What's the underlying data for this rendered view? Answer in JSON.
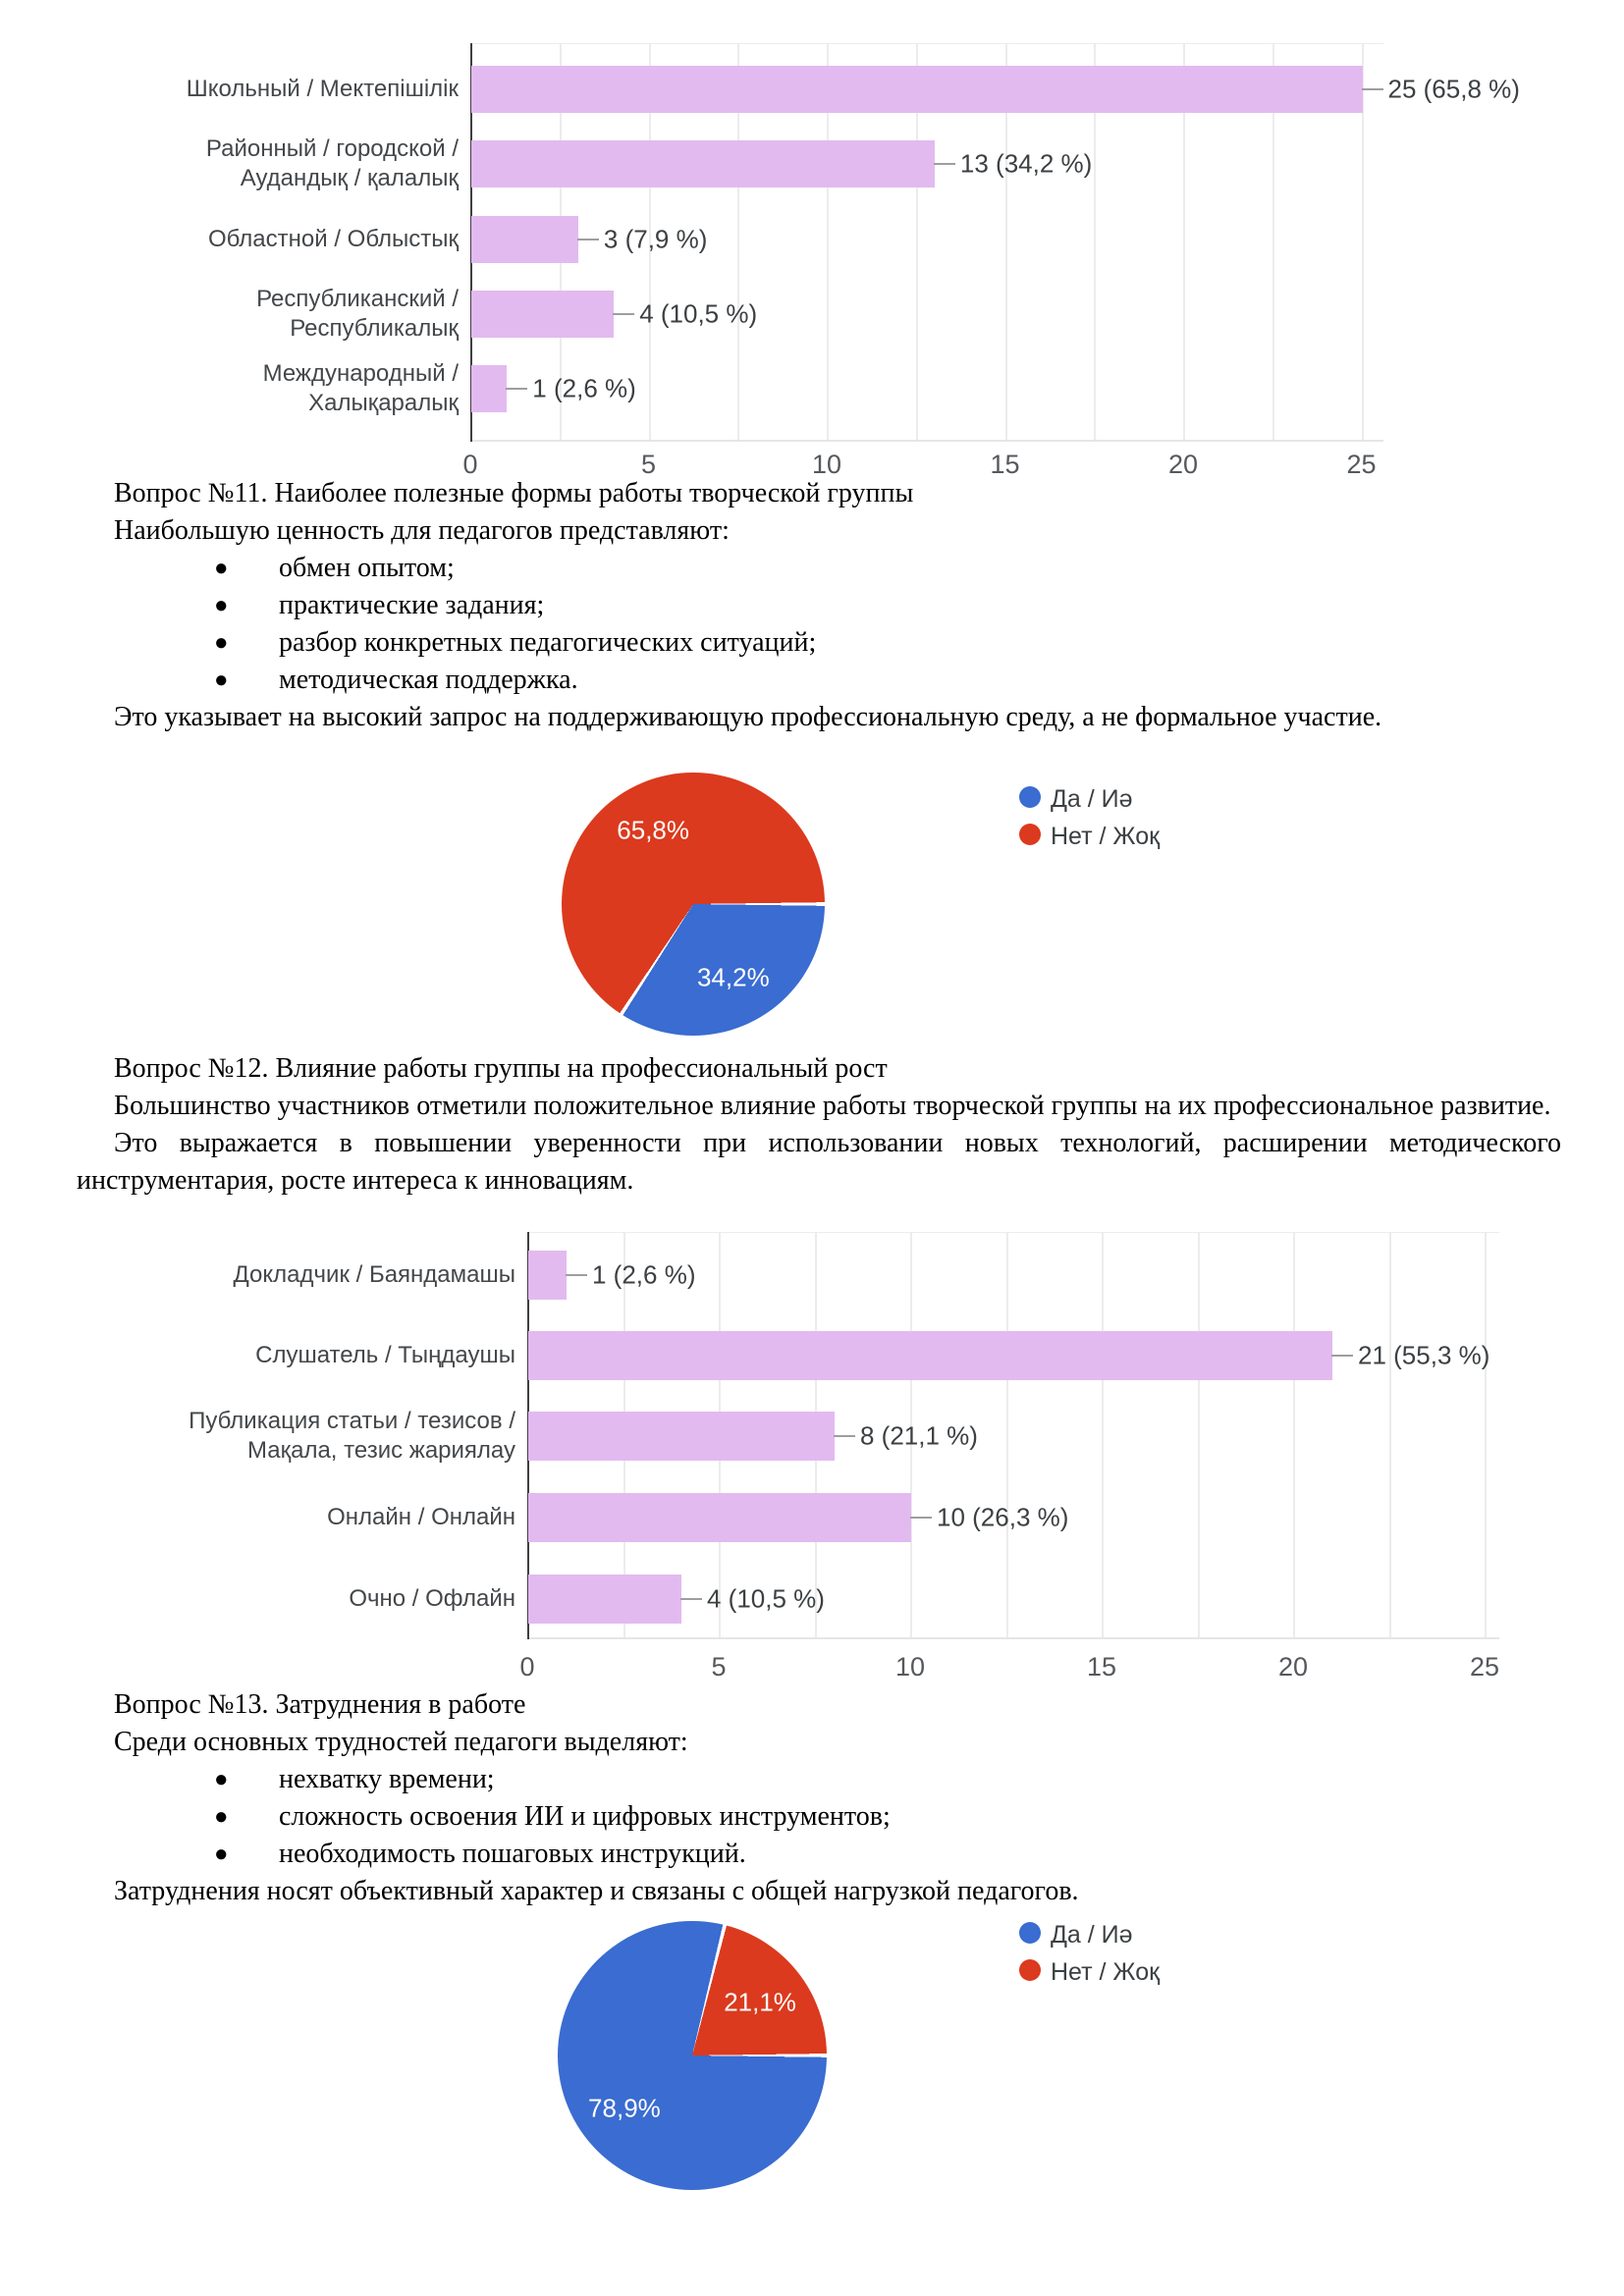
{
  "colors": {
    "bar_fill": "#e2baf0",
    "pie_blue": "#3a6cd1",
    "pie_red": "#db3a1e",
    "grid": "#ececec",
    "axis": "#3f3f3f"
  },
  "legend": {
    "yes": "Да / Иә",
    "no": "Нет / Жоқ"
  },
  "chart_data": [
    {
      "id": "bar1",
      "type": "bar",
      "orientation": "horizontal",
      "categories": [
        "Школьный / Мектепішілік",
        "Районный / городской /\nАудандық / қалалық",
        "Областной / Облыстық",
        "Республиканский /\nРеспубликалық",
        "Международный /\nХалықаралық"
      ],
      "values": [
        25,
        13,
        3,
        4,
        1
      ],
      "value_labels": [
        "25 (65,8 %)",
        "13 (34,2 %)",
        "3 (7,9 %)",
        "4 (10,5 %)",
        "1 (2,6 %)"
      ],
      "xlim": [
        0,
        25
      ],
      "ticks": [
        "0",
        "5",
        "10",
        "15",
        "20",
        "25"
      ],
      "grid": "on",
      "bar_color": "#e2baf0"
    },
    {
      "id": "pie1",
      "type": "pie",
      "start_angle_deg": 90,
      "slices": [
        {
          "label": "Да / Иә",
          "pct": 34.2,
          "display": "34,2%",
          "color": "#3a6cd1"
        },
        {
          "label": "Нет / Жоқ",
          "pct": 65.8,
          "display": "65,8%",
          "color": "#db3a1e"
        }
      ],
      "legend": [
        {
          "label": "Да / Иә",
          "color": "#3a6cd1"
        },
        {
          "label": "Нет / Жоқ",
          "color": "#db3a1e"
        }
      ],
      "legend_position": "top-right"
    },
    {
      "id": "bar2",
      "type": "bar",
      "orientation": "horizontal",
      "categories": [
        "Докладчик / Баяндамашы",
        "Слушатель / Тыңдаушы",
        "Публикация статьи / тезисов /\nМақала, тезис жариялау",
        "Онлайн / Онлайн",
        "Очно / Офлайн"
      ],
      "values": [
        1,
        21,
        8,
        10,
        4
      ],
      "value_labels": [
        "1 (2,6 %)",
        "21 (55,3 %)",
        "8 (21,1 %)",
        "10 (26,3 %)",
        "4 (10,5 %)"
      ],
      "xlim": [
        0,
        25
      ],
      "ticks": [
        "0",
        "5",
        "10",
        "15",
        "20",
        "25"
      ],
      "grid": "on",
      "bar_color": "#e2baf0"
    },
    {
      "id": "pie2",
      "type": "pie",
      "start_angle_deg": 14,
      "slices": [
        {
          "label": "Нет / Жоқ",
          "pct": 21.1,
          "display": "21,1%",
          "color": "#db3a1e"
        },
        {
          "label": "Да / Иә",
          "pct": 78.9,
          "display": "78,9%",
          "color": "#3a6cd1"
        }
      ],
      "legend": [
        {
          "label": "Да / Иә",
          "color": "#3a6cd1"
        },
        {
          "label": "Нет / Жоқ",
          "color": "#db3a1e"
        }
      ],
      "legend_position": "top-right"
    }
  ],
  "sections": {
    "q11": {
      "title": "Вопрос №11. Наиболее полезные формы работы творческой группы",
      "intro": "Наибольшую ценность для педагогов представляют:",
      "bullets": [
        "обмен опытом;",
        "практические задания;",
        "разбор конкретных педагогических ситуаций;",
        "методическая поддержка."
      ],
      "outro": "Это указывает на высокий запрос на поддерживающую профессиональную среду, а не формальное участие."
    },
    "q12": {
      "title": "Вопрос №12. Влияние работы группы на профессиональный рост",
      "p1": "Большинство участников отметили положительное влияние работы творческой группы на их профессиональное развитие.",
      "p2": "Это выражается в повышении уверенности при использовании новых технологий, расширении методического инструментария, росте интереса к инновациям."
    },
    "q13": {
      "title": "Вопрос №13. Затруднения в работе",
      "intro": "Среди основных трудностей педагоги выделяют:",
      "bullets": [
        "нехватку времени;",
        "сложность освоения ИИ и цифровых инструментов;",
        "необходимость пошаговых инструкций."
      ],
      "outro": "Затруднения носят объективный характер и связаны с общей нагрузкой педагогов."
    }
  }
}
